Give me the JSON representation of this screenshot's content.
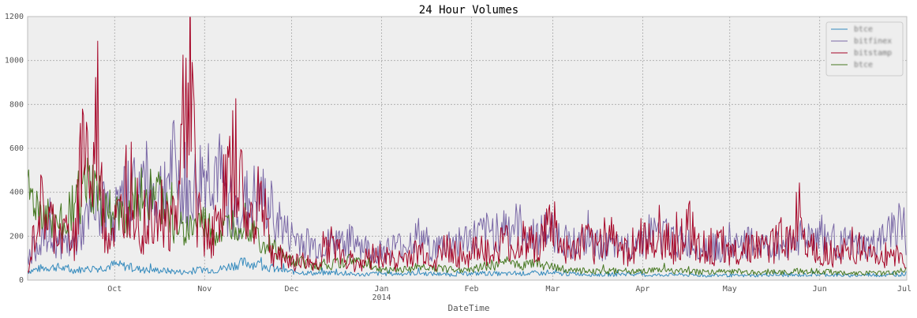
{
  "chart_data": {
    "type": "line",
    "title": "24 Hour Volumes",
    "xlabel": "DateTime",
    "ylabel": "",
    "ylim": [
      0,
      1200
    ],
    "yticks": [
      0,
      200,
      400,
      600,
      800,
      1000,
      1200
    ],
    "grid": true,
    "legend_position": "top-right",
    "x_range_days": [
      0,
      303
    ],
    "xticks": [
      {
        "day": 0,
        "label": ""
      },
      {
        "day": 30,
        "label": "Oct"
      },
      {
        "day": 61,
        "label": "Nov"
      },
      {
        "day": 91,
        "label": "Dec"
      },
      {
        "day": 122,
        "label": "Jan",
        "sublabel": "2014"
      },
      {
        "day": 153,
        "label": "Feb"
      },
      {
        "day": 181,
        "label": "Mar"
      },
      {
        "day": 212,
        "label": "Apr"
      },
      {
        "day": 242,
        "label": "May"
      },
      {
        "day": 273,
        "label": "Jun"
      },
      {
        "day": 303,
        "label": "Jul"
      }
    ],
    "series": [
      {
        "name": "btce",
        "color": "#348ABD",
        "x": [
          0,
          5,
          10,
          15,
          20,
          25,
          30,
          35,
          40,
          45,
          50,
          55,
          60,
          65,
          70,
          75,
          80,
          85,
          90,
          95,
          100,
          105,
          110,
          115,
          120,
          125,
          130,
          135,
          140,
          145,
          150,
          155,
          160,
          165,
          170,
          175,
          180,
          185,
          190,
          195,
          200,
          205,
          210,
          215,
          220,
          225,
          230,
          235,
          240,
          245,
          250,
          255,
          260,
          265,
          270,
          275,
          280,
          285,
          290,
          295,
          300,
          303
        ],
        "values": [
          40,
          55,
          60,
          45,
          50,
          55,
          70,
          60,
          45,
          45,
          40,
          35,
          50,
          45,
          65,
          80,
          70,
          50,
          40,
          35,
          30,
          35,
          28,
          25,
          30,
          28,
          30,
          32,
          28,
          25,
          28,
          30,
          30,
          28,
          30,
          32,
          30,
          28,
          30,
          25,
          25,
          28,
          25,
          22,
          25,
          25,
          22,
          20,
          22,
          20,
          20,
          25,
          22,
          22,
          25,
          25,
          22,
          20,
          25,
          22,
          25,
          30
        ]
      },
      {
        "name": "bitfinex",
        "color": "#7A68A6",
        "x": [
          0,
          5,
          10,
          15,
          20,
          25,
          30,
          35,
          40,
          45,
          50,
          55,
          60,
          65,
          70,
          75,
          80,
          85,
          90,
          95,
          100,
          105,
          110,
          115,
          120,
          125,
          130,
          135,
          140,
          145,
          150,
          155,
          160,
          165,
          170,
          175,
          180,
          185,
          190,
          195,
          200,
          205,
          210,
          215,
          220,
          225,
          230,
          235,
          240,
          245,
          250,
          255,
          260,
          265,
          270,
          275,
          280,
          285,
          290,
          295,
          300,
          303
        ],
        "values": [
          100,
          200,
          180,
          150,
          260,
          320,
          300,
          400,
          450,
          380,
          520,
          350,
          480,
          520,
          300,
          350,
          380,
          300,
          200,
          180,
          150,
          170,
          180,
          160,
          120,
          150,
          160,
          200,
          140,
          170,
          180,
          200,
          220,
          250,
          240,
          200,
          230,
          180,
          170,
          160,
          150,
          140,
          180,
          220,
          200,
          170,
          160,
          150,
          140,
          160,
          170,
          150,
          160,
          190,
          210,
          190,
          170,
          160,
          150,
          180,
          260,
          150
        ]
      },
      {
        "name": "bitstamp",
        "color": "#A60628",
        "x": [
          0,
          4,
          8,
          12,
          16,
          20,
          22,
          24,
          26,
          28,
          32,
          36,
          40,
          44,
          48,
          52,
          54,
          56,
          58,
          60,
          64,
          68,
          72,
          76,
          80,
          84,
          88,
          92,
          96,
          100,
          104,
          108,
          112,
          116,
          120,
          124,
          128,
          132,
          136,
          140,
          144,
          148,
          152,
          156,
          160,
          164,
          168,
          172,
          176,
          180,
          184,
          188,
          192,
          196,
          200,
          204,
          208,
          212,
          216,
          220,
          224,
          228,
          232,
          236,
          240,
          244,
          248,
          252,
          256,
          260,
          264,
          266,
          268,
          272,
          276,
          280,
          284,
          288,
          292,
          296,
          300,
          303
        ],
        "values": [
          30,
          320,
          250,
          200,
          180,
          700,
          300,
          780,
          250,
          200,
          280,
          450,
          220,
          380,
          250,
          300,
          900,
          1000,
          350,
          250,
          200,
          400,
          550,
          220,
          420,
          120,
          100,
          90,
          80,
          70,
          180,
          110,
          80,
          90,
          120,
          100,
          90,
          110,
          130,
          80,
          150,
          120,
          100,
          170,
          90,
          180,
          130,
          200,
          150,
          250,
          150,
          120,
          180,
          140,
          220,
          160,
          120,
          200,
          140,
          180,
          150,
          250,
          160,
          130,
          170,
          120,
          160,
          140,
          150,
          200,
          170,
          360,
          200,
          140,
          130,
          110,
          160,
          130,
          100,
          120,
          110,
          100
        ]
      },
      {
        "name": "btce",
        "color": "#467821",
        "x": [
          0,
          5,
          10,
          15,
          20,
          25,
          30,
          35,
          40,
          45,
          50,
          55,
          60,
          65,
          70,
          75,
          80,
          85,
          90,
          95,
          100,
          105,
          110,
          115,
          120,
          125,
          130,
          135,
          140,
          145,
          150,
          155,
          160,
          165,
          170,
          175,
          180,
          185,
          190,
          195,
          200,
          205,
          210,
          215,
          220,
          225,
          230,
          235,
          240,
          245,
          250,
          255,
          260,
          265,
          270,
          275,
          280,
          285,
          290,
          295,
          300,
          303
        ],
        "values": [
          380,
          300,
          250,
          320,
          420,
          380,
          280,
          300,
          420,
          380,
          250,
          220,
          260,
          200,
          240,
          280,
          180,
          140,
          90,
          80,
          60,
          70,
          90,
          80,
          50,
          45,
          50,
          60,
          55,
          50,
          50,
          55,
          65,
          80,
          70,
          75,
          60,
          50,
          45,
          40,
          40,
          45,
          40,
          42,
          45,
          40,
          38,
          35,
          40,
          38,
          35,
          38,
          35,
          40,
          40,
          38,
          35,
          30,
          32,
          30,
          35,
          60
        ]
      }
    ]
  }
}
